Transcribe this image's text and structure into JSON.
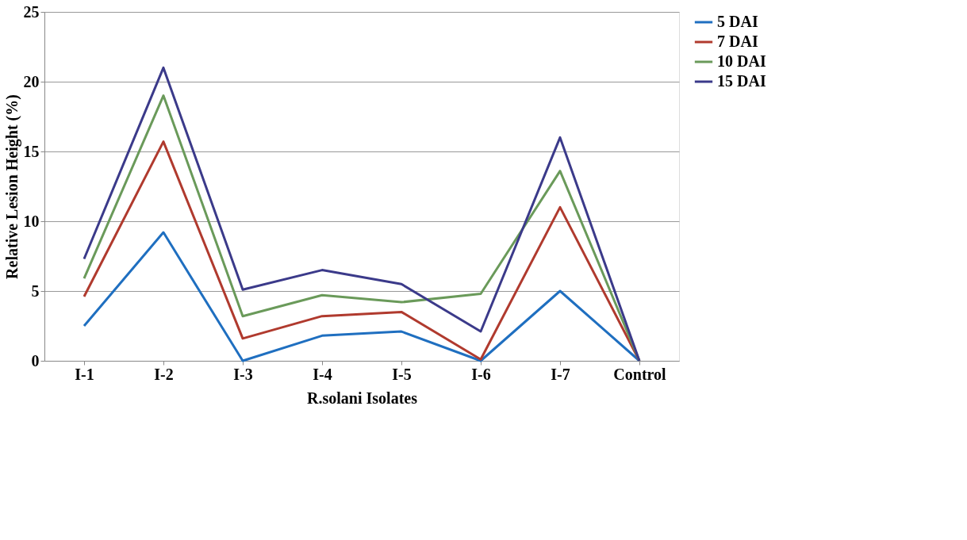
{
  "chart_data": {
    "type": "line",
    "xlabel": "R.solani Isolates",
    "ylabel": "Relative Lesion Height (%)",
    "categories": [
      "I-1",
      "I-2",
      "I-3",
      "I-4",
      "I-5",
      "I-6",
      "I-7",
      "Control"
    ],
    "series": [
      {
        "name": "5 DAI",
        "color": "#1f6fc0",
        "values": [
          2.5,
          9.2,
          0,
          1.8,
          2.1,
          0,
          5.0,
          0
        ]
      },
      {
        "name": "7 DAI",
        "color": "#b03a2e",
        "values": [
          4.6,
          15.7,
          1.6,
          3.2,
          3.5,
          0.1,
          11.0,
          0
        ]
      },
      {
        "name": "10 DAI",
        "color": "#6a9a5a",
        "values": [
          5.9,
          19.0,
          3.2,
          4.7,
          4.2,
          4.8,
          13.6,
          0
        ]
      },
      {
        "name": "15 DAI",
        "color": "#3b3a8a",
        "values": [
          7.3,
          21.0,
          5.1,
          6.5,
          5.5,
          2.1,
          16.0,
          0
        ]
      }
    ],
    "ylim": [
      0,
      25
    ],
    "yticks": [
      0,
      5,
      10,
      15,
      20,
      25
    ],
    "grid": "y",
    "legend": "right",
    "marker": "none",
    "line_style": "solid"
  }
}
